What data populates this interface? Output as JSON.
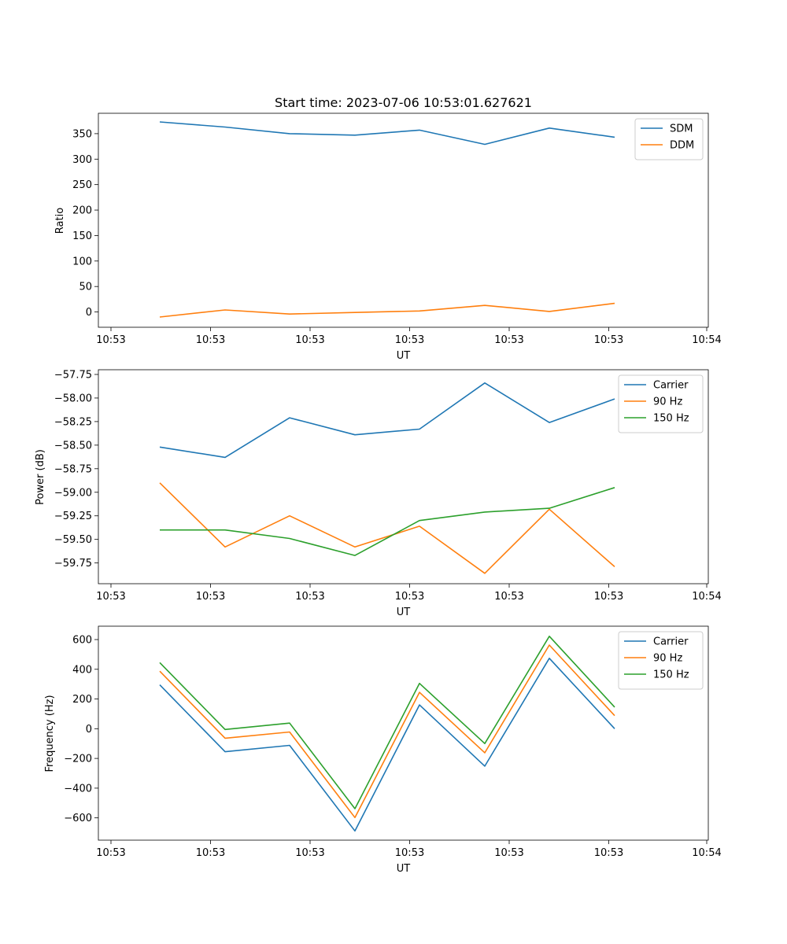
{
  "chart_data": [
    {
      "type": "line",
      "title": "Start time: 2023-07-06 10:53:01.627621",
      "xlabel": "UT",
      "ylabel": "Ratio",
      "xtick_labels": [
        "10:53",
        "10:53",
        "10:53",
        "10:53",
        "10:53",
        "10:53",
        "10:54"
      ],
      "ylim": [
        -30,
        390
      ],
      "yticks": [
        0,
        50,
        100,
        150,
        200,
        250,
        300,
        350
      ],
      "ytick_labels": [
        "0",
        "50",
        "100",
        "150",
        "200",
        "250",
        "300",
        "350"
      ],
      "legend": "top-right",
      "series": [
        {
          "name": "SDM",
          "color": "#1f77b4",
          "values": [
            373,
            363,
            350,
            347,
            357,
            329,
            361,
            343
          ]
        },
        {
          "name": "DDM",
          "color": "#ff7f0e",
          "values": [
            -10,
            4,
            -4,
            -1,
            2,
            13,
            1,
            17
          ]
        }
      ]
    },
    {
      "type": "line",
      "title": "",
      "xlabel": "UT",
      "ylabel": "Power (dB)",
      "xtick_labels": [
        "10:53",
        "10:53",
        "10:53",
        "10:53",
        "10:53",
        "10:53",
        "10:54"
      ],
      "ylim": [
        -59.97,
        -57.7
      ],
      "yticks": [
        -59.75,
        -59.5,
        -59.25,
        -59.0,
        -58.75,
        -58.5,
        -58.25,
        -58.0,
        -57.75
      ],
      "ytick_labels": [
        "−59.75",
        "−59.50",
        "−59.25",
        "−59.00",
        "−58.75",
        "−58.50",
        "−58.25",
        "−58.00",
        "−57.75"
      ],
      "legend": "top-right",
      "series": [
        {
          "name": "Carrier",
          "color": "#1f77b4",
          "values": [
            -58.52,
            -58.63,
            -58.21,
            -58.39,
            -58.33,
            -57.84,
            -58.26,
            -58.01
          ]
        },
        {
          "name": "90 Hz",
          "color": "#ff7f0e",
          "values": [
            -58.9,
            -59.58,
            -59.25,
            -59.58,
            -59.36,
            -59.86,
            -59.18,
            -59.79
          ]
        },
        {
          "name": "150 Hz",
          "color": "#2ca02c",
          "values": [
            -59.4,
            -59.4,
            -59.49,
            -59.67,
            -59.3,
            -59.21,
            -59.17,
            -58.95
          ]
        }
      ]
    },
    {
      "type": "line",
      "title": "",
      "xlabel": "UT",
      "ylabel": "Frequency (Hz)",
      "xtick_labels": [
        "10:53",
        "10:53",
        "10:53",
        "10:53",
        "10:53",
        "10:53",
        "10:54"
      ],
      "ylim": [
        -750,
        690
      ],
      "yticks": [
        -600,
        -400,
        -200,
        0,
        200,
        400,
        600
      ],
      "ytick_labels": [
        "−600",
        "−400",
        "−200",
        "0",
        "200",
        "400",
        "600"
      ],
      "legend": "top-right",
      "series": [
        {
          "name": "Carrier",
          "color": "#1f77b4",
          "values": [
            295,
            -155,
            -112,
            -688,
            160,
            -252,
            474,
            0
          ]
        },
        {
          "name": "90 Hz",
          "color": "#ff7f0e",
          "values": [
            387,
            -64,
            -22,
            -598,
            245,
            -162,
            563,
            88
          ]
        },
        {
          "name": "150 Hz",
          "color": "#2ca02c",
          "values": [
            445,
            -5,
            38,
            -538,
            305,
            -100,
            622,
            145
          ]
        }
      ]
    }
  ]
}
